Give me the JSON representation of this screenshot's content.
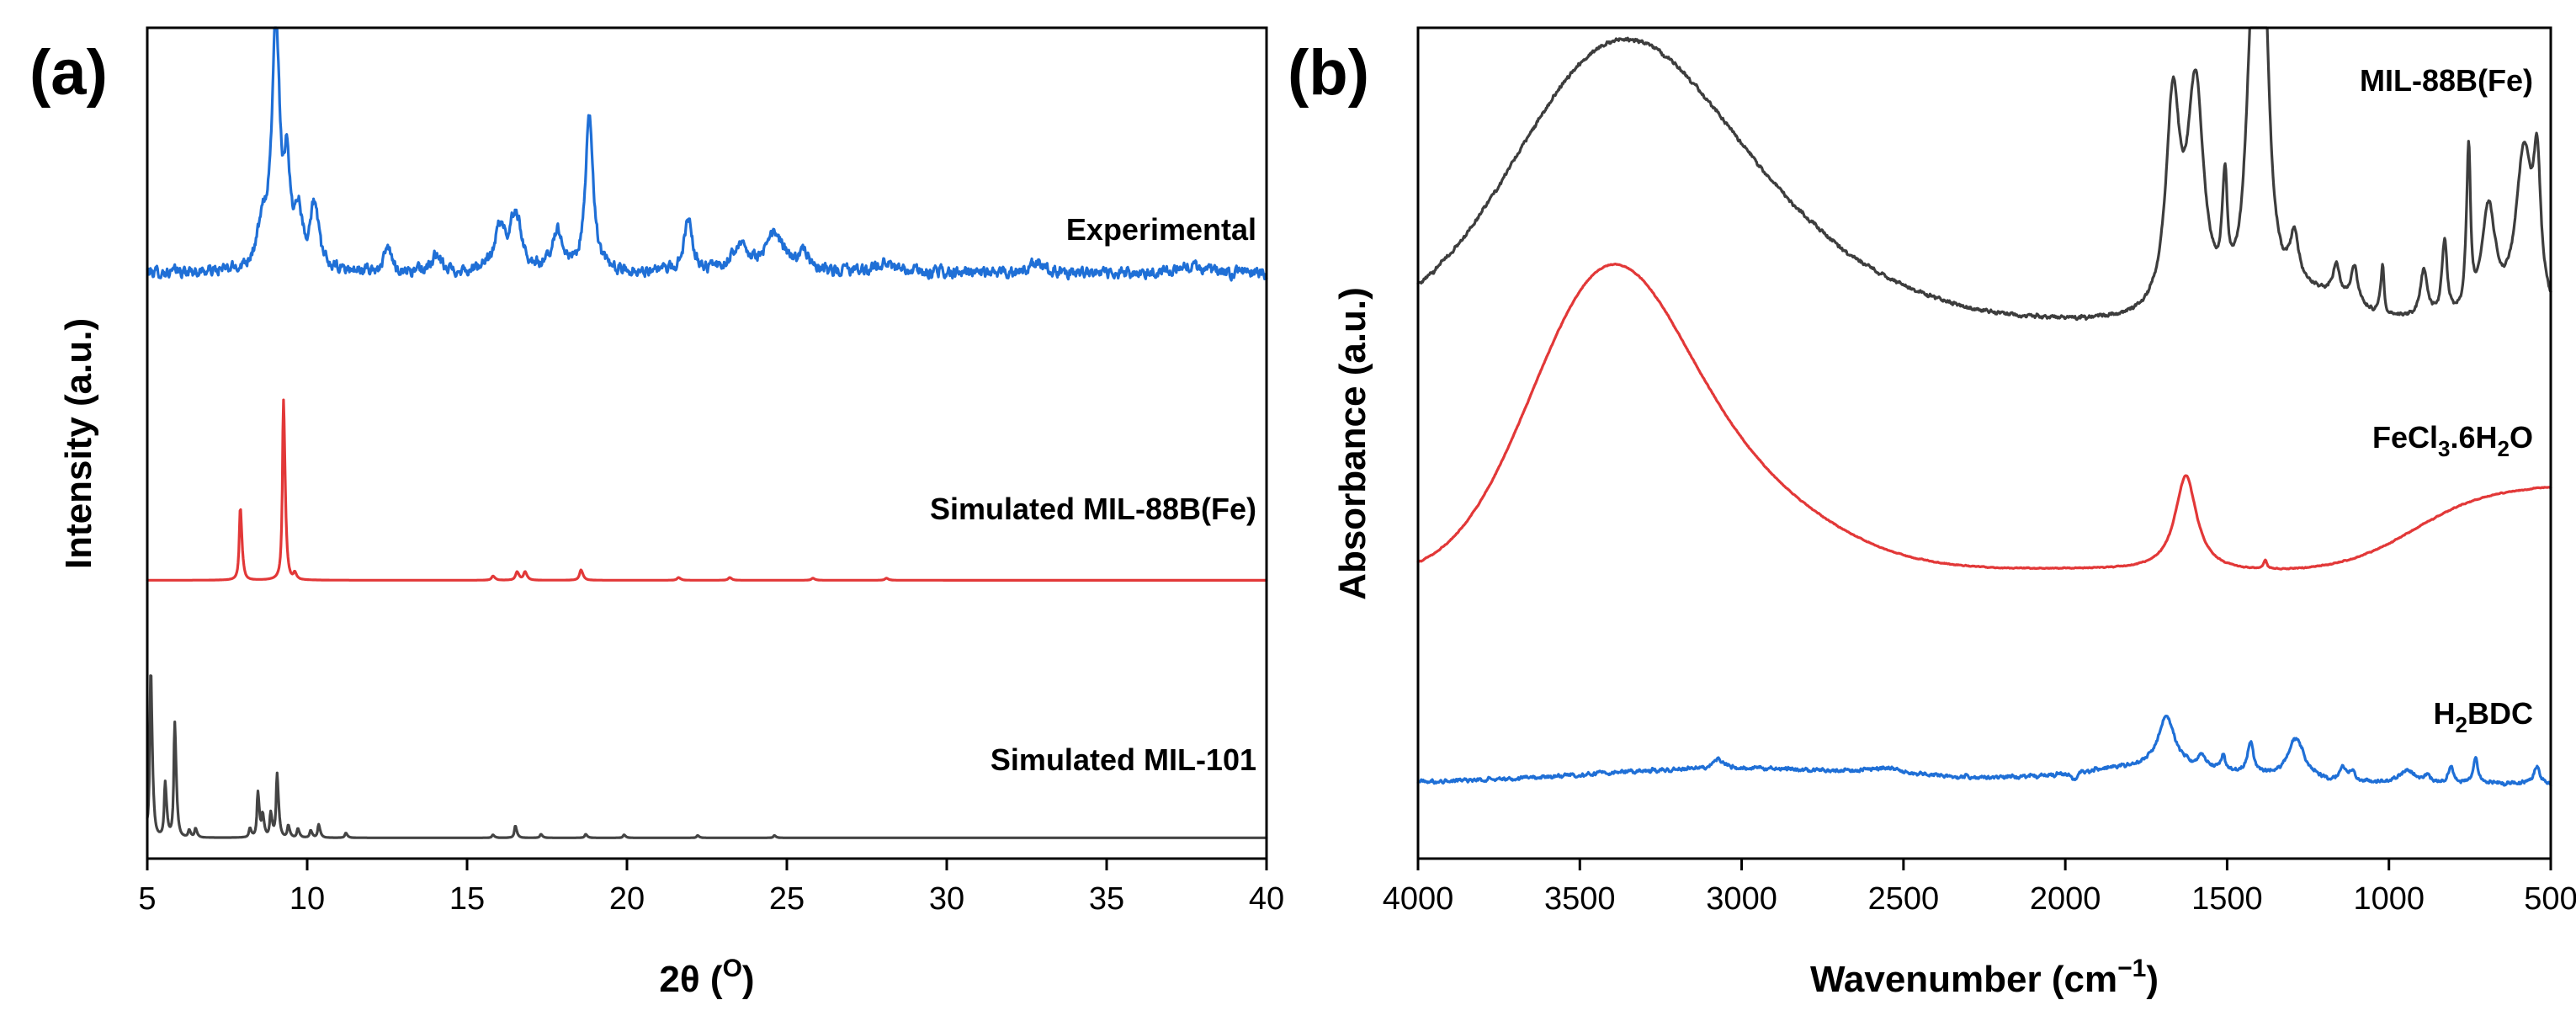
{
  "chart_data": [
    {
      "type": "line",
      "panel_label": "(a)",
      "xlabel_main": "2θ",
      "xlabel_open": " (",
      "xlabel_sup": "O",
      "xlabel_close": ")",
      "ylabel": "Intensity (a.u.)",
      "xlim": [
        5,
        40
      ],
      "xticks": [
        5,
        10,
        15,
        20,
        25,
        30,
        35,
        40
      ],
      "yticks": [],
      "grid": false,
      "series": [
        {
          "name": "Experimental",
          "color": "#1f6fd6",
          "offset": 0.66,
          "baseline": 0.045,
          "noise": 0.012,
          "peaks": [
            [
              8.6,
              0.05,
              0.22
            ],
            [
              9.0,
              0.31,
              0.13
            ],
            [
              9.35,
              0.12,
              0.1
            ],
            [
              9.7,
              0.07,
              0.13
            ],
            [
              10.2,
              0.08,
              0.15
            ],
            [
              12.5,
              0.03,
              0.12
            ],
            [
              14.0,
              0.02,
              0.15
            ],
            [
              16.0,
              0.05,
              0.2
            ],
            [
              16.5,
              0.07,
              0.2
            ],
            [
              17.8,
              0.05,
              0.18
            ],
            [
              18.8,
              0.19,
              0.14
            ],
            [
              21.9,
              0.07,
              0.14
            ],
            [
              23.5,
              0.035,
              0.25
            ],
            [
              24.6,
              0.045,
              0.35
            ],
            [
              25.5,
              0.02,
              0.2
            ],
            [
              28.0,
              0.012,
              0.3
            ],
            [
              32.8,
              0.012,
              0.3
            ],
            [
              37.5,
              0.008,
              0.4
            ]
          ]
        },
        {
          "name": "Simulated MIL-88B(Fe)",
          "color": "#e23838",
          "offset": 0.335,
          "baseline": 0,
          "noise": 0,
          "peaks": [
            [
              7.9,
              0.115,
              0.035
            ],
            [
              9.25,
              0.285,
              0.035
            ],
            [
              9.6,
              0.01,
              0.04
            ],
            [
              15.8,
              0.006,
              0.05
            ],
            [
              16.55,
              0.012,
              0.05
            ],
            [
              16.8,
              0.012,
              0.05
            ],
            [
              18.55,
              0.015,
              0.05
            ],
            [
              21.6,
              0.004,
              0.05
            ],
            [
              23.2,
              0.004,
              0.05
            ],
            [
              25.8,
              0.003,
              0.05
            ],
            [
              28.1,
              0.003,
              0.05
            ]
          ]
        },
        {
          "name": "Simulated MIL-101",
          "color": "#444444",
          "offset": 0.025,
          "baseline": 0,
          "noise": 0,
          "peaks": [
            [
              5.1,
              0.28,
              0.03
            ],
            [
              5.55,
              0.09,
              0.03
            ],
            [
              5.85,
              0.19,
              0.03
            ],
            [
              6.3,
              0.012,
              0.03
            ],
            [
              6.5,
              0.015,
              0.03
            ],
            [
              8.2,
              0.015,
              0.03
            ],
            [
              8.45,
              0.075,
              0.03
            ],
            [
              8.6,
              0.035,
              0.03
            ],
            [
              8.85,
              0.04,
              0.03
            ],
            [
              9.05,
              0.105,
              0.03
            ],
            [
              9.4,
              0.02,
              0.03
            ],
            [
              9.7,
              0.015,
              0.03
            ],
            [
              10.1,
              0.012,
              0.03
            ],
            [
              10.35,
              0.022,
              0.03
            ],
            [
              11.2,
              0.008,
              0.03
            ],
            [
              15.8,
              0.005,
              0.03
            ],
            [
              16.5,
              0.02,
              0.03
            ],
            [
              17.3,
              0.006,
              0.03
            ],
            [
              18.7,
              0.006,
              0.03
            ],
            [
              19.9,
              0.005,
              0.03
            ],
            [
              22.2,
              0.004,
              0.03
            ],
            [
              24.6,
              0.004,
              0.03
            ]
          ]
        }
      ]
    },
    {
      "type": "line",
      "panel_label": "(b)",
      "xlabel_main": "Wavenumber (cm",
      "xlabel_sup": "−1",
      "xlabel_close": ")",
      "ylabel": "Absorbance (a.u.)",
      "xlim": [
        4000,
        500
      ],
      "xticks": [
        4000,
        3500,
        3000,
        2500,
        2000,
        1500,
        1000,
        500
      ],
      "yticks": [],
      "grid": false,
      "series": [
        {
          "name": "MIL-88B(Fe)",
          "label_prefix": "MIL-88B(Fe)",
          "color": "#3d3d3d",
          "offset": 0.645,
          "baseline": 0,
          "noise": 0.004,
          "broad": [
            [
              3420,
              0.26,
              300
            ],
            [
              3050,
              0.12,
              380
            ],
            [
              1250,
              0.03,
              120
            ]
          ],
          "peaks": [
            [
              1665,
              0.25,
              25
            ],
            [
              1595,
              0.27,
              30
            ],
            [
              1505,
              0.14,
              8
            ],
            [
              1420,
              0.3,
              22
            ],
            [
              1385,
              0.36,
              20
            ],
            [
              1290,
              0.06,
              15
            ],
            [
              1160,
              0.04,
              12
            ],
            [
              1105,
              0.05,
              12
            ],
            [
              1018,
              0.07,
              5
            ],
            [
              890,
              0.06,
              12
            ],
            [
              826,
              0.1,
              8
            ],
            [
              752,
              0.22,
              6
            ],
            [
              690,
              0.13,
              25
            ],
            [
              580,
              0.2,
              30
            ],
            [
              540,
              0.16,
              12
            ]
          ]
        },
        {
          "name": "FeCl3.6H2O",
          "label_prefix": "FeCl",
          "label_sub1": "3",
          "label_mid": ".6H",
          "label_sub2": "2",
          "label_suffix": "O",
          "color": "#e23838",
          "offset": 0.34,
          "baseline": 0,
          "noise": 0.001,
          "broad": [
            [
              3430,
              0.3,
              230
            ],
            [
              3100,
              0.12,
              320
            ],
            [
              2000,
              0.008,
              500
            ]
          ],
          "peaks": [
            [
              1625,
              0.115,
              40
            ],
            [
              1380,
              0.012,
              5
            ]
          ],
          "sigmoid": [
            920,
            0.11,
            120
          ]
        },
        {
          "name": "H2BDC",
          "label_prefix": "H",
          "label_sub1": "2",
          "label_suffix": "BDC",
          "color": "#1f6fd6",
          "offset": 0.09,
          "baseline": 0,
          "noise": 0.004,
          "broad": [
            [
              3000,
              0.018,
              500
            ],
            [
              1700,
              0.02,
              250
            ]
          ],
          "peaks": [
            [
              1685,
              0.06,
              30
            ],
            [
              1575,
              0.015,
              10
            ],
            [
              1510,
              0.02,
              6
            ],
            [
              1425,
              0.04,
              10
            ],
            [
              1285,
              0.05,
              30
            ],
            [
              1140,
              0.018,
              8
            ],
            [
              1110,
              0.016,
              8
            ],
            [
              940,
              0.015,
              30
            ],
            [
              880,
              0.008,
              10
            ],
            [
              805,
              0.02,
              8
            ],
            [
              730,
              0.032,
              8
            ],
            [
              540,
              0.022,
              10
            ],
            [
              2550,
              0.007,
              60
            ],
            [
              3070,
              0.012,
              20
            ],
            [
              1970,
              -0.008,
              10
            ]
          ]
        }
      ]
    }
  ]
}
